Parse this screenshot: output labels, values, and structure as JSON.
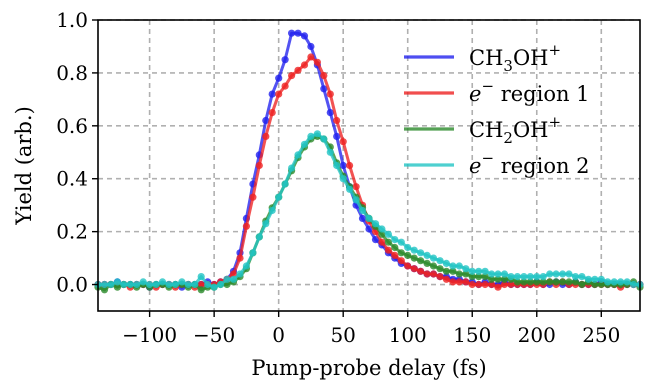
{
  "chart_data": {
    "type": "line",
    "title": "",
    "xlabel": "Pump-probe delay (fs)",
    "ylabel": "Yield (arb.)",
    "xlim": [
      -140,
      280
    ],
    "ylim": [
      -0.1,
      1.0
    ],
    "x_ticks": [
      -100,
      -50,
      0,
      50,
      100,
      150,
      200,
      250
    ],
    "x_tick_labels": [
      "−100",
      "−50",
      "0",
      "50",
      "100",
      "150",
      "200",
      "250"
    ],
    "y_ticks": [
      0.0,
      0.2,
      0.4,
      0.6,
      0.8,
      1.0
    ],
    "y_tick_labels": [
      "0.0",
      "0.2",
      "0.4",
      "0.6",
      "0.8",
      "1.0"
    ],
    "grid": true,
    "legend_position": "top-right",
    "series": [
      {
        "name": "CH3OH+",
        "label_main": "CH",
        "label_sub": "3",
        "label_rest": "OH",
        "label_sup": "+",
        "color": "#2222ee",
        "x": [
          -140,
          -135,
          -130,
          -125,
          -120,
          -115,
          -110,
          -105,
          -100,
          -95,
          -90,
          -85,
          -80,
          -75,
          -70,
          -65,
          -60,
          -55,
          -50,
          -45,
          -40,
          -35,
          -30,
          -25,
          -20,
          -15,
          -10,
          -5,
          0,
          5,
          10,
          15,
          20,
          25,
          30,
          35,
          40,
          45,
          50,
          55,
          60,
          65,
          70,
          75,
          80,
          85,
          90,
          95,
          100,
          105,
          110,
          115,
          120,
          125,
          130,
          135,
          140,
          145,
          150,
          155,
          160,
          165,
          170,
          175,
          180,
          185,
          190,
          195,
          200,
          205,
          210,
          215,
          220,
          225,
          230,
          235,
          240,
          245,
          250,
          255,
          260,
          265,
          270,
          275,
          280
        ],
        "y": [
          0.0,
          0.0,
          0.0,
          0.01,
          0.0,
          0.0,
          0.0,
          0.0,
          -0.01,
          0.0,
          0.0,
          0.0,
          0.0,
          -0.01,
          0.0,
          0.0,
          0.0,
          0.01,
          0.0,
          0.01,
          0.02,
          0.05,
          0.12,
          0.25,
          0.38,
          0.49,
          0.62,
          0.72,
          0.78,
          0.85,
          0.95,
          0.95,
          0.94,
          0.9,
          0.83,
          0.74,
          0.65,
          0.56,
          0.45,
          0.37,
          0.3,
          0.25,
          0.21,
          0.17,
          0.15,
          0.12,
          0.1,
          0.08,
          0.07,
          0.06,
          0.05,
          0.04,
          0.04,
          0.03,
          0.03,
          0.02,
          0.02,
          0.01,
          0.01,
          0.0,
          0.01,
          0.0,
          0.0,
          0.01,
          0.0,
          0.0,
          0.0,
          0.0,
          0.01,
          0.0,
          0.0,
          0.01,
          0.0,
          0.0,
          0.01,
          0.0,
          0.0,
          0.0,
          0.01,
          0.0,
          0.0,
          0.0,
          0.0,
          0.0,
          0.0
        ]
      },
      {
        "name": "e− region 1",
        "label_main": "e",
        "label_sup": "−",
        "label_rest": " region 1",
        "color": "#ee2222",
        "x": [
          -140,
          -135,
          -130,
          -125,
          -120,
          -115,
          -110,
          -105,
          -100,
          -95,
          -90,
          -85,
          -80,
          -75,
          -70,
          -65,
          -60,
          -55,
          -50,
          -45,
          -40,
          -35,
          -30,
          -25,
          -20,
          -15,
          -10,
          -5,
          0,
          5,
          10,
          15,
          20,
          25,
          30,
          35,
          40,
          45,
          50,
          55,
          60,
          65,
          70,
          75,
          80,
          85,
          90,
          95,
          100,
          105,
          110,
          115,
          120,
          125,
          130,
          135,
          140,
          145,
          150,
          155,
          160,
          165,
          170,
          175,
          180,
          185,
          190,
          195,
          200,
          205,
          210,
          215,
          220,
          225,
          230,
          235,
          240,
          245,
          250,
          255,
          260,
          265,
          270,
          275,
          280
        ],
        "y": [
          0.0,
          0.0,
          0.0,
          0.0,
          0.0,
          -0.01,
          0.0,
          0.0,
          0.0,
          -0.01,
          0.0,
          0.0,
          -0.01,
          0.0,
          0.0,
          -0.01,
          0.0,
          0.0,
          0.0,
          0.01,
          0.02,
          0.04,
          0.1,
          0.22,
          0.33,
          0.45,
          0.56,
          0.65,
          0.72,
          0.75,
          0.79,
          0.81,
          0.83,
          0.86,
          0.84,
          0.79,
          0.72,
          0.62,
          0.54,
          0.45,
          0.37,
          0.3,
          0.24,
          0.2,
          0.16,
          0.13,
          0.11,
          0.09,
          0.07,
          0.06,
          0.05,
          0.04,
          0.04,
          0.03,
          0.02,
          0.01,
          0.01,
          0.01,
          0.0,
          0.0,
          0.0,
          0.0,
          -0.01,
          0.0,
          0.0,
          0.0,
          0.0,
          0.0,
          0.0,
          0.0,
          0.01,
          0.0,
          0.01,
          0.0,
          0.0,
          0.0,
          0.0,
          0.0,
          0.0,
          0.0,
          0.0,
          -0.01,
          0.0,
          0.0,
          0.0
        ]
      },
      {
        "name": "CH2OH+",
        "label_main": "CH",
        "label_sub": "2",
        "label_rest": "OH",
        "label_sup": "+",
        "color": "#2a8a2a",
        "x": [
          -140,
          -135,
          -130,
          -125,
          -120,
          -115,
          -110,
          -105,
          -100,
          -95,
          -90,
          -85,
          -80,
          -75,
          -70,
          -65,
          -60,
          -55,
          -50,
          -45,
          -40,
          -35,
          -30,
          -25,
          -20,
          -15,
          -10,
          -5,
          0,
          5,
          10,
          15,
          20,
          25,
          30,
          35,
          40,
          45,
          50,
          55,
          60,
          65,
          70,
          75,
          80,
          85,
          90,
          95,
          100,
          105,
          110,
          115,
          120,
          125,
          130,
          135,
          140,
          145,
          150,
          155,
          160,
          165,
          170,
          175,
          180,
          185,
          190,
          195,
          200,
          205,
          210,
          215,
          220,
          225,
          230,
          235,
          240,
          245,
          250,
          255,
          260,
          265,
          270,
          275,
          280
        ],
        "y": [
          -0.01,
          -0.02,
          0.0,
          -0.01,
          0.0,
          0.0,
          -0.01,
          0.0,
          -0.01,
          0.0,
          0.0,
          -0.01,
          0.0,
          0.0,
          -0.01,
          0.0,
          -0.02,
          -0.01,
          -0.01,
          0.0,
          0.0,
          0.01,
          0.03,
          0.06,
          0.12,
          0.18,
          0.24,
          0.29,
          0.33,
          0.38,
          0.43,
          0.48,
          0.52,
          0.55,
          0.56,
          0.55,
          0.52,
          0.46,
          0.41,
          0.37,
          0.33,
          0.29,
          0.25,
          0.22,
          0.19,
          0.16,
          0.14,
          0.12,
          0.11,
          0.1,
          0.09,
          0.08,
          0.07,
          0.06,
          0.05,
          0.05,
          0.04,
          0.04,
          0.03,
          0.03,
          0.03,
          0.02,
          0.02,
          0.02,
          0.02,
          0.01,
          0.01,
          0.01,
          0.01,
          0.01,
          0.01,
          0.01,
          0.01,
          0.01,
          0.01,
          0.0,
          0.01,
          0.0,
          0.0,
          0.0,
          0.0,
          0.0,
          0.0,
          0.01,
          -0.01
        ]
      },
      {
        "name": "e− region 2",
        "label_main": "e",
        "label_sup": "−",
        "label_rest": " region 2",
        "color": "#22c4c4",
        "x": [
          -140,
          -135,
          -130,
          -125,
          -120,
          -115,
          -110,
          -105,
          -100,
          -95,
          -90,
          -85,
          -80,
          -75,
          -70,
          -65,
          -60,
          -55,
          -50,
          -45,
          -40,
          -35,
          -30,
          -25,
          -20,
          -15,
          -10,
          -5,
          0,
          5,
          10,
          15,
          20,
          25,
          30,
          35,
          40,
          45,
          50,
          55,
          60,
          65,
          70,
          75,
          80,
          85,
          90,
          95,
          100,
          105,
          110,
          115,
          120,
          125,
          130,
          135,
          140,
          145,
          150,
          155,
          160,
          165,
          170,
          175,
          180,
          185,
          190,
          195,
          200,
          205,
          210,
          215,
          220,
          225,
          230,
          235,
          240,
          245,
          250,
          255,
          260,
          265,
          270,
          275,
          280
        ],
        "y": [
          0.0,
          0.0,
          0.0,
          0.01,
          0.0,
          0.0,
          0.0,
          0.01,
          0.0,
          0.0,
          0.01,
          0.0,
          0.0,
          0.01,
          0.0,
          0.0,
          0.03,
          0.0,
          -0.01,
          0.0,
          0.02,
          0.02,
          0.04,
          0.07,
          0.12,
          0.18,
          0.23,
          0.28,
          0.33,
          0.38,
          0.44,
          0.49,
          0.53,
          0.56,
          0.57,
          0.55,
          0.5,
          0.45,
          0.4,
          0.36,
          0.32,
          0.28,
          0.25,
          0.23,
          0.21,
          0.19,
          0.17,
          0.16,
          0.14,
          0.13,
          0.12,
          0.11,
          0.1,
          0.09,
          0.08,
          0.07,
          0.07,
          0.06,
          0.05,
          0.05,
          0.05,
          0.04,
          0.04,
          0.04,
          0.03,
          0.03,
          0.03,
          0.03,
          0.03,
          0.03,
          0.04,
          0.04,
          0.04,
          0.04,
          0.03,
          0.03,
          0.02,
          0.02,
          0.02,
          0.01,
          0.01,
          0.01,
          0.01,
          0.0,
          0.0
        ]
      }
    ]
  }
}
